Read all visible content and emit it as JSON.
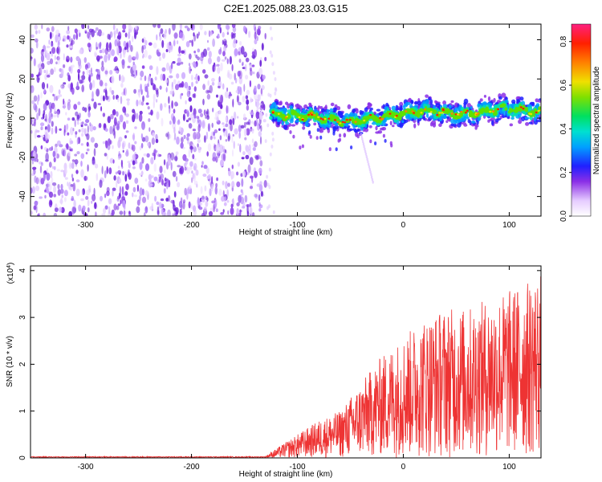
{
  "chart_data": [
    {
      "type": "heatmap",
      "title": "C2E1.2025.088.23.03.G15",
      "xlabel": "Height of straight line (km)",
      "ylabel": "Frequency (Hz)",
      "xlim": [
        -352,
        130
      ],
      "ylim": [
        -50,
        48
      ],
      "x_ticks": [
        -300,
        -200,
        -100,
        0,
        100
      ],
      "y_ticks": [
        -40,
        -20,
        0,
        20,
        40
      ],
      "colorbar": {
        "label": "Normalized spectral amplitude",
        "range": [
          0,
          0.88
        ],
        "ticks": [
          0.0,
          0.2,
          0.4,
          0.6,
          0.8
        ]
      },
      "regions": [
        {
          "x_range": [
            -352,
            -130
          ],
          "description": "scattered low-amplitude noise across all frequencies",
          "amplitude": 0.12
        },
        {
          "x_range": [
            -125,
            130
          ],
          "description": "narrow band near 0 Hz",
          "center_hz": [
            2,
            1,
            -2,
            1,
            4,
            2,
            5,
            3
          ],
          "amplitude_peak": 0.85
        }
      ]
    },
    {
      "type": "line",
      "xlabel": "Height of straight line (km)",
      "ylabel": "SNR (10 * v/v)",
      "y_multiplier": "(x10",
      "y_multiplier_exp": "4",
      "xlim": [
        -352,
        130
      ],
      "ylim": [
        0,
        4.1
      ],
      "x_ticks": [
        -300,
        -200,
        -100,
        0,
        100
      ],
      "y_ticks": [
        0,
        1,
        2,
        3,
        4
      ],
      "series": [
        {
          "color": "#ee3333",
          "x": [
            -352,
            -130,
            -120,
            -100,
            -80,
            -60,
            -40,
            -20,
            0,
            20,
            40,
            60,
            80,
            100,
            120,
            130
          ],
          "values": [
            0.02,
            0.02,
            0.1,
            0.25,
            0.4,
            0.5,
            0.8,
            1.1,
            1.3,
            1.5,
            1.6,
            1.6,
            1.7,
            1.8,
            1.9,
            2.0
          ]
        }
      ]
    }
  ]
}
